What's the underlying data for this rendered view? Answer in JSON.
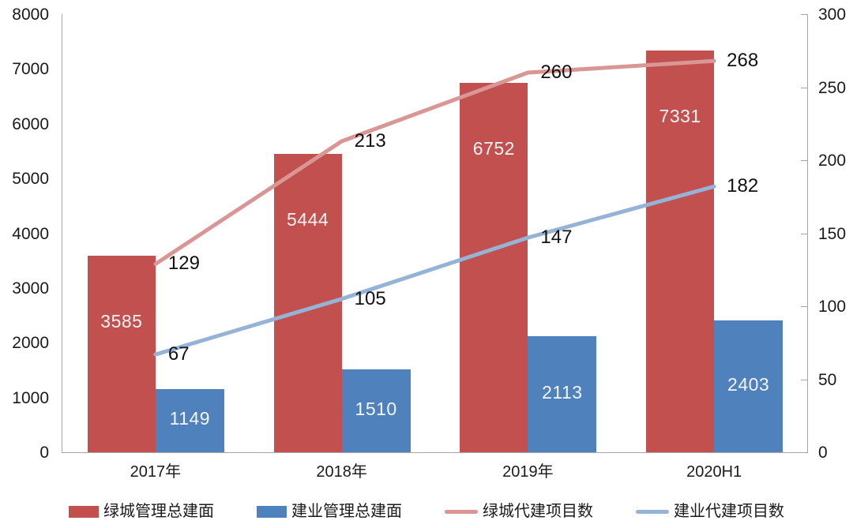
{
  "chart_data": {
    "type": "bar",
    "subtype": "combo-bar-line-dual-axis",
    "title": "",
    "xlabel": "",
    "ylabel": "",
    "categories": [
      "2017年",
      "2018年",
      "2019年",
      "2020H1"
    ],
    "series": [
      {
        "name": "绿城管理总建面",
        "kind": "bar",
        "axis": "left",
        "color": "#c2504e",
        "values": [
          3585,
          5444,
          6752,
          7331
        ]
      },
      {
        "name": "建业管理总建面",
        "kind": "bar",
        "axis": "left",
        "color": "#4f81bd",
        "values": [
          1149,
          1510,
          2113,
          2403
        ]
      },
      {
        "name": "绿城代建项目数",
        "kind": "line",
        "axis": "right",
        "color": "#d99694",
        "values": [
          129,
          213,
          260,
          268
        ]
      },
      {
        "name": "建业代建项目数",
        "kind": "line",
        "axis": "right",
        "color": "#95b3d7",
        "values": [
          67,
          105,
          147,
          182
        ]
      }
    ],
    "left_axis": {
      "min": 0,
      "max": 8000,
      "ticks": [
        0,
        1000,
        2000,
        3000,
        4000,
        5000,
        6000,
        7000,
        8000
      ]
    },
    "right_axis": {
      "min": 0,
      "max": 300,
      "ticks": [
        0,
        50,
        100,
        150,
        200,
        250,
        300
      ]
    },
    "legend_position": "bottom",
    "grid": false,
    "colors": {
      "axis_line": "#a6a6a6",
      "bar_label_text": "#f5f5f5",
      "point_label_text": "#111111",
      "background": "#ffffff"
    }
  }
}
